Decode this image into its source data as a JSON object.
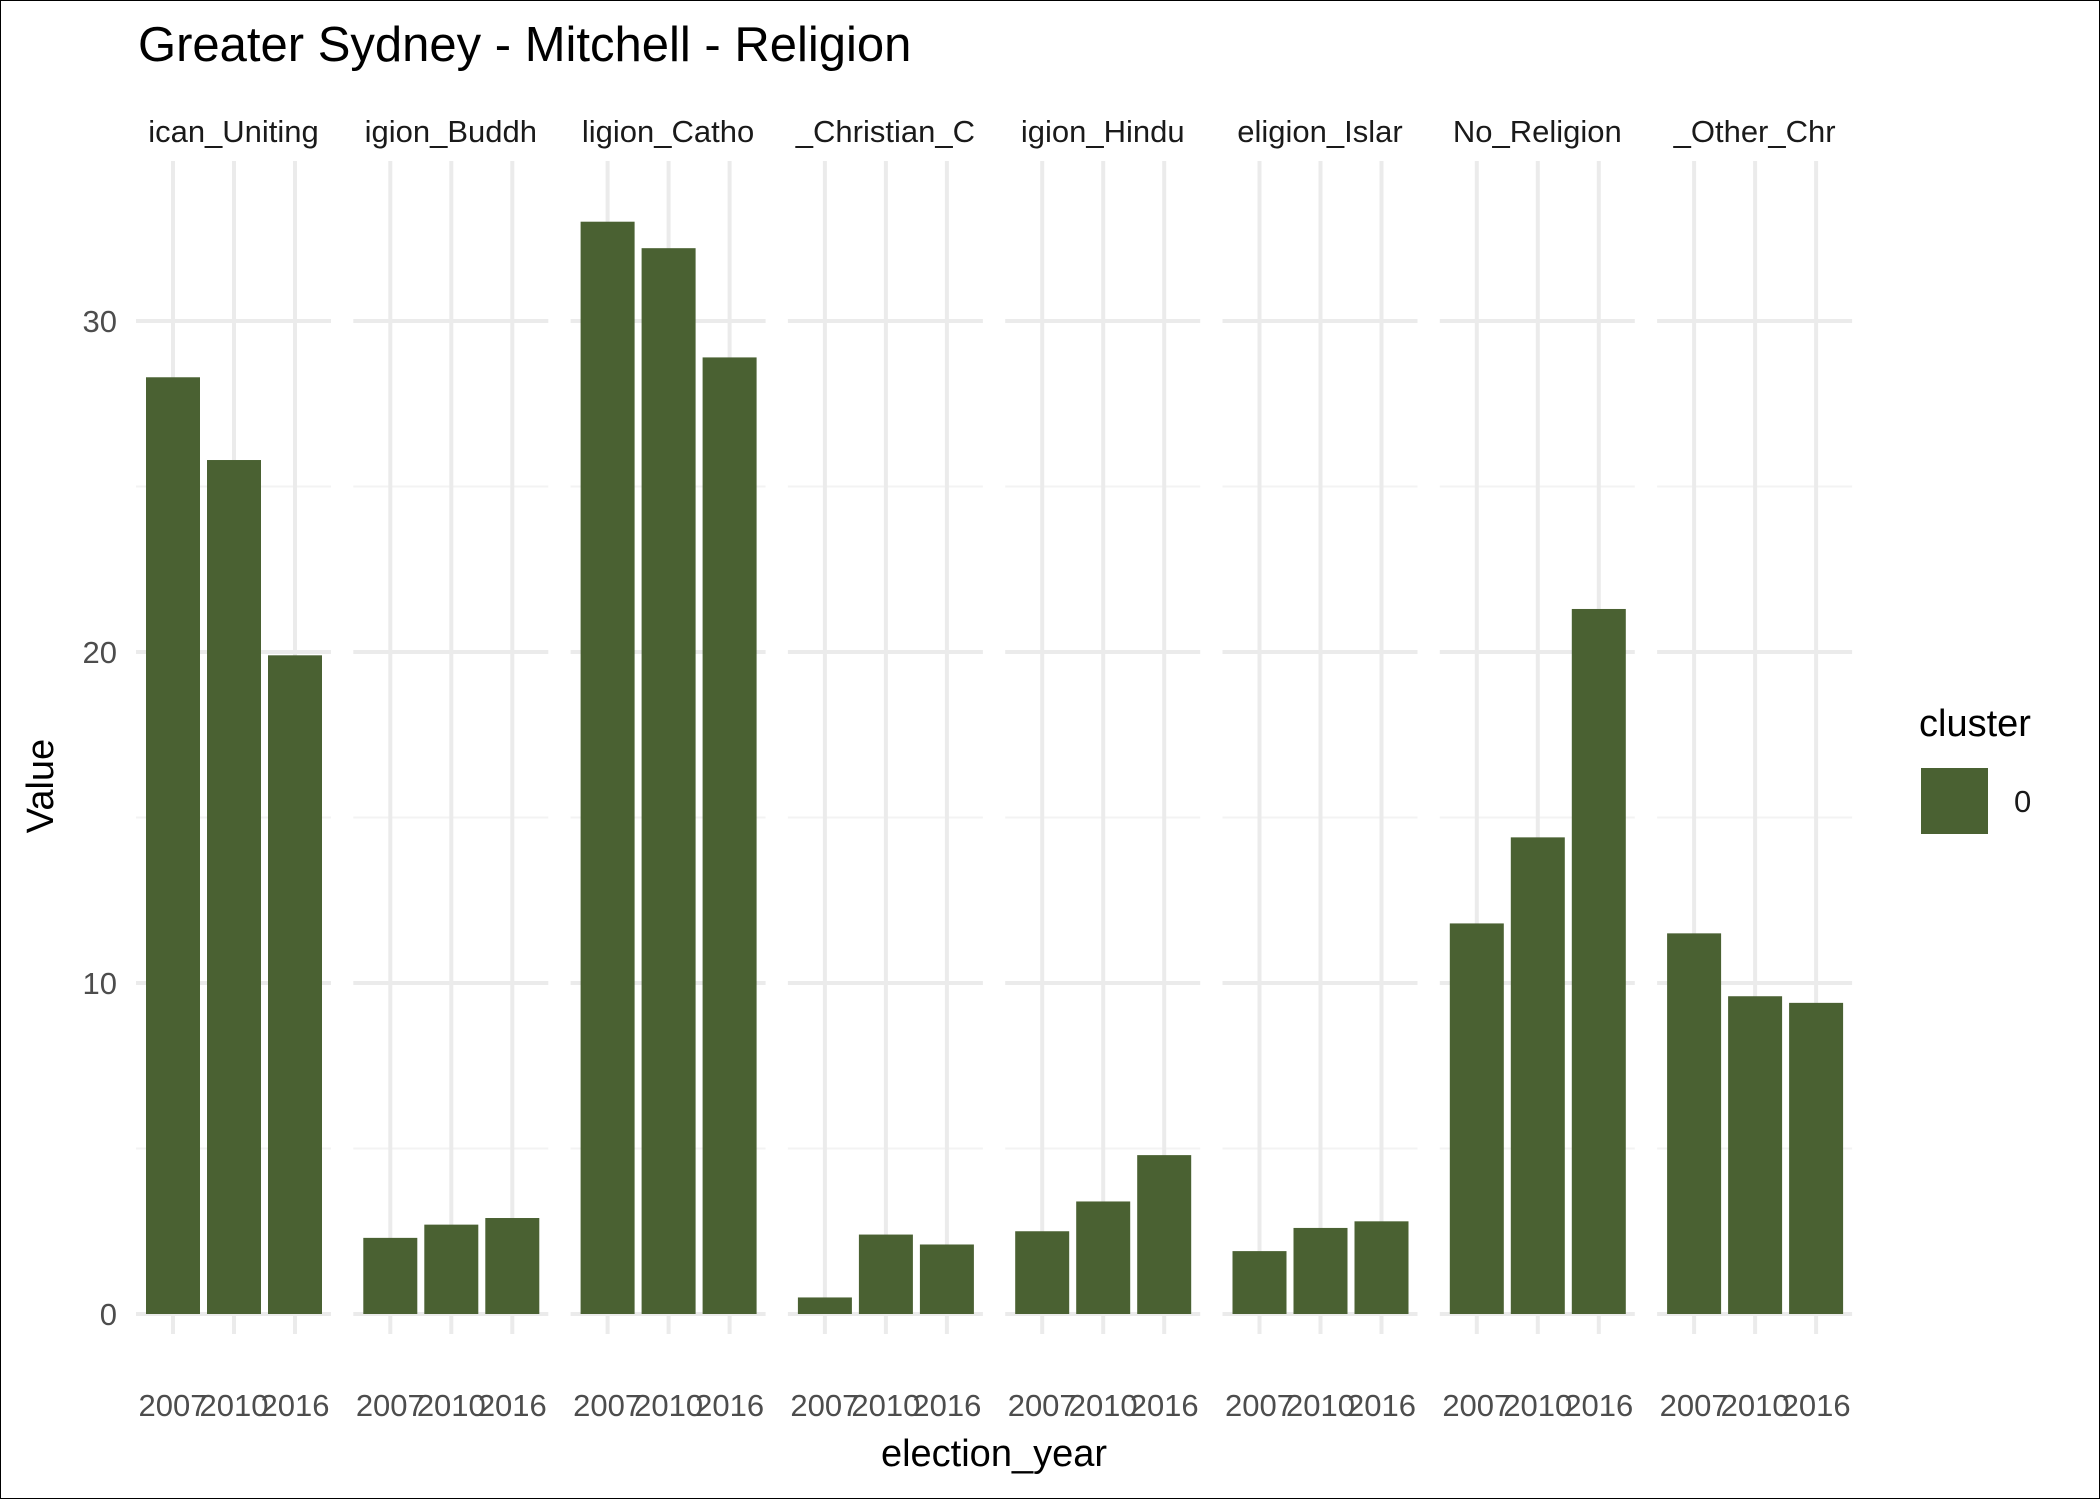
{
  "chart_data": {
    "type": "bar",
    "title": "Greater Sydney - Mitchell - Religion",
    "xlabel": "election_year",
    "ylabel": "Value",
    "ylim": [
      0,
      34
    ],
    "yticks": [
      0,
      10,
      20,
      30
    ],
    "grid": true,
    "legend": {
      "title": "cluster",
      "position": "right",
      "entries": [
        {
          "label": "0",
          "color": "#4a6132"
        }
      ]
    },
    "categories": [
      "2007",
      "2010",
      "2016"
    ],
    "panels": [
      {
        "strip_label": "ican_Uniting",
        "values": [
          28.3,
          25.8,
          19.9
        ]
      },
      {
        "strip_label": "igion_Buddh",
        "values": [
          2.3,
          2.7,
          2.9
        ]
      },
      {
        "strip_label": "ligion_Catho",
        "values": [
          33.0,
          32.2,
          28.9
        ]
      },
      {
        "strip_label": "_Christian_C",
        "values": [
          0.5,
          2.4,
          2.1
        ]
      },
      {
        "strip_label": "igion_Hindu",
        "values": [
          2.5,
          3.4,
          4.8
        ]
      },
      {
        "strip_label": "eligion_Islar",
        "values": [
          1.9,
          2.6,
          2.8
        ]
      },
      {
        "strip_label": "No_Religion",
        "values": [
          11.8,
          14.4,
          21.3
        ]
      },
      {
        "strip_label": "_Other_Chr",
        "values": [
          11.5,
          9.6,
          9.4
        ]
      }
    ]
  },
  "colors": {
    "bar": "#4a6132",
    "grid_major": "#ebebeb",
    "grid_minor": "#f3f3f3"
  }
}
